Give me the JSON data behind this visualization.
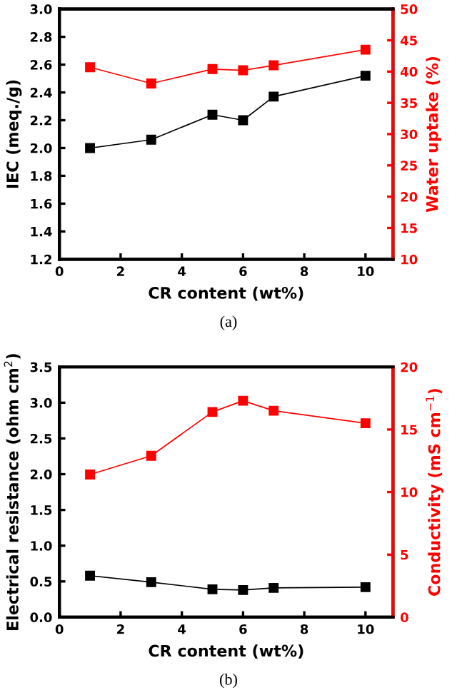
{
  "chart_data": [
    {
      "type": "line",
      "xlabel": "CR content (wt%)",
      "ylabel": "IEC (meq./g)",
      "y2label": "Water uptake (%)",
      "annotations": [
        "(a)"
      ],
      "marker": "square",
      "line_style": "solid",
      "grid": false,
      "legend": false,
      "xlim": [
        0,
        10.9
      ],
      "xticks": [
        0,
        2,
        4,
        6,
        8,
        10
      ],
      "ylim": [
        1.2,
        3.0
      ],
      "yticks": [
        {
          "value": 1.2,
          "label": "1.2"
        },
        {
          "value": 1.4,
          "label": "1.4"
        },
        {
          "value": 1.6,
          "label": "1.6"
        },
        {
          "value": 1.8,
          "label": "1.8"
        },
        {
          "value": 2.0,
          "label": "2.0"
        },
        {
          "value": 2.2,
          "label": "2.2"
        },
        {
          "value": 2.4,
          "label": "2.4"
        },
        {
          "value": 2.6,
          "label": "2.6"
        },
        {
          "value": 2.8,
          "label": "2.8"
        },
        {
          "value": 3.0,
          "label": "3.0"
        }
      ],
      "y2lim": [
        10,
        50
      ],
      "y2ticks": [
        10,
        15,
        20,
        25,
        30,
        35,
        40,
        45,
        50
      ],
      "x": [
        1,
        3,
        5,
        6,
        7,
        10
      ],
      "series": [
        {
          "color": "#000000",
          "values": [
            2.0,
            2.06,
            2.24,
            2.2,
            2.37,
            2.52
          ]
        },
        {
          "color": "#ff0000",
          "axis": "y2",
          "values": [
            40.7,
            38.1,
            40.4,
            40.2,
            41.0,
            43.5
          ]
        }
      ]
    },
    {
      "type": "line",
      "xlabel": "CR content (wt%)",
      "ylabel": "Electrical resistance (ohm cm$^{2}$)",
      "y2label": "Conductivity (mS cm$^{−1}$)",
      "annotations": [
        "(b)"
      ],
      "marker": "square",
      "line_style": "solid",
      "grid": false,
      "legend": false,
      "xlim": [
        0,
        10.9
      ],
      "xticks": [
        0,
        2,
        4,
        6,
        8,
        10
      ],
      "ylim": [
        0,
        3.5
      ],
      "yticks": [
        {
          "value": 0,
          "label": "0.0"
        },
        {
          "value": 0.5,
          "label": "0.5"
        },
        {
          "value": 1.0,
          "label": "1.0"
        },
        {
          "value": 1.5,
          "label": "1.5"
        },
        {
          "value": 2.0,
          "label": "2.0"
        },
        {
          "value": 2.5,
          "label": "2.5"
        },
        {
          "value": 3.0,
          "label": "3.0"
        },
        {
          "value": 3.5,
          "label": "3.5"
        }
      ],
      "y2lim": [
        0,
        20
      ],
      "y2ticks": [
        0,
        5,
        10,
        15,
        20
      ],
      "x": [
        1,
        3,
        5,
        6,
        7,
        10
      ],
      "series": [
        {
          "color": "#000000",
          "values": [
            0.58,
            0.49,
            0.39,
            0.38,
            0.41,
            0.42
          ]
        },
        {
          "color": "#ff0000",
          "axis": "y2",
          "values": [
            11.4,
            12.9,
            16.4,
            17.3,
            16.5,
            15.5
          ]
        }
      ]
    }
  ]
}
